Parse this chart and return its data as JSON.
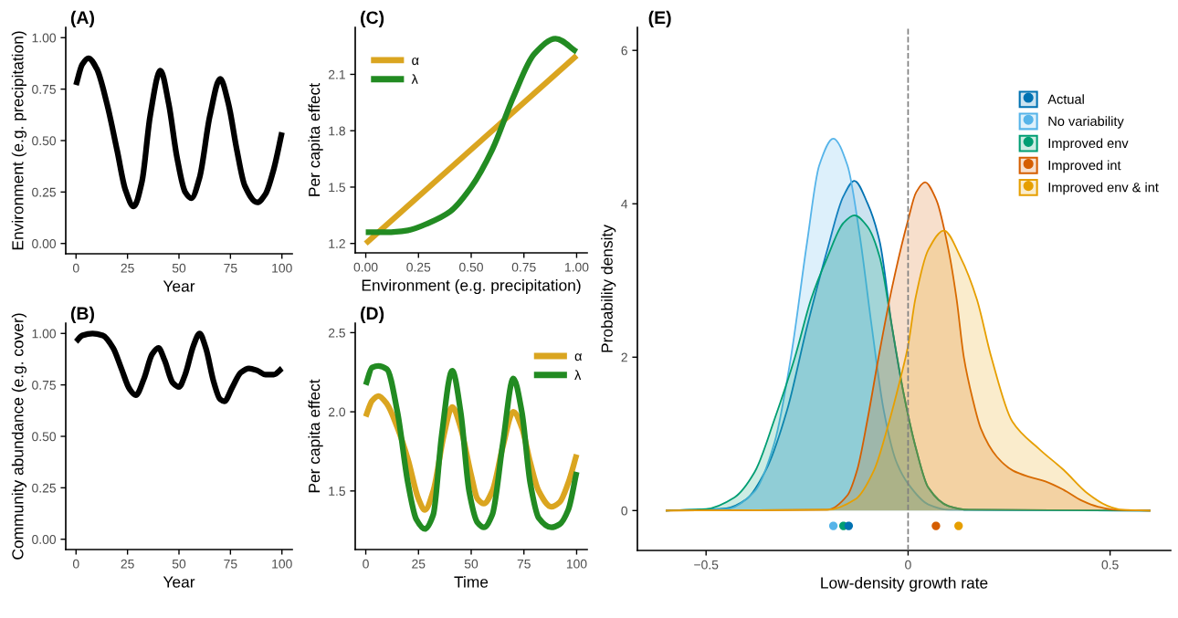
{
  "chart_data": [
    {
      "type": "line",
      "title": "(A)",
      "xlabel": "Year",
      "ylabel": "Environment (e.g. precipitation)",
      "xlim": [
        -5,
        105
      ],
      "ylim": [
        -0.05,
        1.05
      ],
      "xticks": [
        0,
        25,
        50,
        75,
        100
      ],
      "yticks": [
        {
          "value": 0,
          "label": "0.00"
        },
        {
          "value": 0.25,
          "label": "0.25"
        },
        {
          "value": 0.5,
          "label": "0.50"
        },
        {
          "value": 0.75,
          "label": "0.75"
        },
        {
          "value": 1,
          "label": "1.00"
        }
      ],
      "x": [
        0,
        3,
        6,
        10,
        15,
        20,
        24,
        28,
        32,
        36,
        41,
        45,
        49,
        53,
        56,
        60,
        65,
        70,
        74,
        78,
        82,
        88,
        92,
        96,
        100
      ],
      "series": [
        {
          "color": "#000000",
          "values": [
            0.77,
            0.87,
            0.9,
            0.85,
            0.68,
            0.45,
            0.26,
            0.18,
            0.3,
            0.62,
            0.84,
            0.68,
            0.42,
            0.25,
            0.22,
            0.32,
            0.62,
            0.8,
            0.68,
            0.46,
            0.28,
            0.2,
            0.24,
            0.36,
            0.54
          ]
        }
      ]
    },
    {
      "type": "line",
      "title": "(B)",
      "xlabel": "Year",
      "ylabel": "Community abundance (e.g. cover)",
      "xlim": [
        -5,
        105
      ],
      "ylim": [
        -0.05,
        1.05
      ],
      "xticks": [
        0,
        25,
        50,
        75,
        100
      ],
      "yticks": [
        {
          "value": 0,
          "label": "0.00"
        },
        {
          "value": 0.25,
          "label": "0.25"
        },
        {
          "value": 0.5,
          "label": "0.50"
        },
        {
          "value": 0.75,
          "label": "0.75"
        },
        {
          "value": 1,
          "label": "1.00"
        }
      ],
      "x": [
        0,
        3,
        8,
        13,
        18,
        22,
        26,
        29,
        33,
        37,
        40,
        43,
        47,
        50,
        53,
        57,
        60,
        63,
        67,
        70,
        72,
        76,
        80,
        84,
        88,
        92,
        96,
        100
      ],
      "series": [
        {
          "color": "#000000",
          "values": [
            0.96,
            0.99,
            1.0,
            0.99,
            0.93,
            0.83,
            0.73,
            0.7,
            0.78,
            0.9,
            0.93,
            0.87,
            0.76,
            0.74,
            0.8,
            0.94,
            1.0,
            0.93,
            0.76,
            0.68,
            0.67,
            0.74,
            0.81,
            0.83,
            0.82,
            0.8,
            0.8,
            0.83
          ]
        }
      ]
    },
    {
      "type": "line",
      "title": "(C)",
      "xlabel": "Environment (e.g. precipitation)",
      "ylabel": "Per capita effect",
      "xlim": [
        -0.05,
        1.05
      ],
      "ylim": [
        1.15,
        2.35
      ],
      "xticks": [
        {
          "value": 0,
          "label": "0.00"
        },
        {
          "value": 0.25,
          "label": "0.25"
        },
        {
          "value": 0.5,
          "label": "0.50"
        },
        {
          "value": 0.75,
          "label": "0.75"
        },
        {
          "value": 1,
          "label": "1.00"
        }
      ],
      "yticks": [
        1.2,
        1.5,
        1.8,
        2.1
      ],
      "legend": "top left",
      "series": [
        {
          "name": "α",
          "color": "#DAA520",
          "x": [
            0,
            1
          ],
          "values": [
            1.2,
            2.2
          ]
        },
        {
          "name": "λ",
          "color": "#228B22",
          "x": [
            0,
            0.1,
            0.2,
            0.3,
            0.4,
            0.5,
            0.6,
            0.7,
            0.8,
            0.9,
            1.0
          ],
          "values": [
            1.26,
            1.26,
            1.27,
            1.31,
            1.37,
            1.5,
            1.7,
            1.98,
            2.21,
            2.29,
            2.22
          ]
        }
      ]
    },
    {
      "type": "line",
      "title": "(D)",
      "xlabel": "Time",
      "ylabel": "Per capita effect",
      "xlim": [
        -5,
        105
      ],
      "ylim": [
        1.13,
        2.56
      ],
      "xticks": [
        0,
        25,
        50,
        75,
        100
      ],
      "yticks": [
        1.5,
        {
          "value": 2,
          "label": "2.0"
        },
        2.5
      ],
      "legend": "top right",
      "series": [
        {
          "name": "α",
          "color": "#DAA520",
          "x": [
            0,
            3,
            6,
            10,
            15,
            20,
            25,
            28,
            32,
            37,
            41,
            45,
            50,
            53,
            56,
            60,
            65,
            70,
            74,
            78,
            82,
            88,
            92,
            96,
            100
          ],
          "values": [
            1.97,
            2.07,
            2.1,
            2.05,
            1.9,
            1.7,
            1.45,
            1.38,
            1.5,
            1.85,
            2.03,
            1.9,
            1.6,
            1.45,
            1.42,
            1.5,
            1.78,
            2.0,
            1.9,
            1.68,
            1.5,
            1.4,
            1.43,
            1.55,
            1.73
          ]
        },
        {
          "name": "λ",
          "color": "#228B22",
          "x": [
            0,
            3,
            6,
            10,
            15,
            20,
            24,
            28,
            32,
            36,
            41,
            45,
            49,
            53,
            56,
            60,
            65,
            70,
            74,
            78,
            82,
            88,
            92,
            96,
            100
          ],
          "values": [
            2.17,
            2.28,
            2.29,
            2.27,
            2.0,
            1.55,
            1.32,
            1.26,
            1.35,
            1.85,
            2.26,
            2.0,
            1.5,
            1.3,
            1.27,
            1.35,
            1.8,
            2.21,
            2.0,
            1.55,
            1.33,
            1.27,
            1.29,
            1.38,
            1.62
          ]
        }
      ]
    },
    {
      "type": "area",
      "title": "(E)",
      "xlabel": "Low-density growth rate",
      "ylabel": "Probability density",
      "xlim": [
        -0.67,
        0.65
      ],
      "ylim": [
        -0.52,
        6.3
      ],
      "xticks": [
        {
          "value": -0.5,
          "label": "−0.5"
        },
        0,
        0.5
      ],
      "yticks": [
        0,
        2,
        4,
        6
      ],
      "legend": "top right",
      "ref_lines": [
        {
          "axis": "x",
          "value": 0,
          "color": "#7f7f7f",
          "line_style": "dashed"
        }
      ],
      "series": [
        {
          "name": "Actual",
          "color": "#0072B2",
          "x": [
            -0.6,
            -0.45,
            -0.4,
            -0.35,
            -0.3,
            -0.25,
            -0.2,
            -0.16,
            -0.133,
            -0.1,
            -0.07,
            -0.04,
            -0.01,
            0.02,
            0.05,
            0.1,
            0.15,
            0.6
          ],
          "values": [
            0,
            0.03,
            0.15,
            0.55,
            1.3,
            2.4,
            3.4,
            4.1,
            4.3,
            4.0,
            3.5,
            2.4,
            1.5,
            0.8,
            0.3,
            0.06,
            0.01,
            0
          ]
        },
        {
          "name": "No variability",
          "color": "#56B4E9",
          "x": [
            -0.6,
            -0.45,
            -0.38,
            -0.33,
            -0.29,
            -0.25,
            -0.22,
            -0.185,
            -0.15,
            -0.12,
            -0.09,
            -0.06,
            -0.03,
            0,
            0.05,
            0.1,
            0.6
          ],
          "values": [
            0,
            0.02,
            0.25,
            0.9,
            2.0,
            3.5,
            4.5,
            4.85,
            4.5,
            3.6,
            2.4,
            1.3,
            0.65,
            0.35,
            0.08,
            0.01,
            0
          ]
        },
        {
          "name": "Improved env",
          "color": "#009E73",
          "x": [
            -0.6,
            -0.5,
            -0.43,
            -0.38,
            -0.33,
            -0.28,
            -0.24,
            -0.2,
            -0.16,
            -0.133,
            -0.1,
            -0.07,
            -0.04,
            -0.01,
            0.02,
            0.05,
            0.1,
            0.15,
            0.6
          ],
          "values": [
            0,
            0.02,
            0.17,
            0.5,
            1.2,
            2.0,
            2.76,
            3.3,
            3.75,
            3.85,
            3.7,
            3.3,
            2.4,
            1.5,
            0.8,
            0.3,
            0.06,
            0.01,
            0
          ]
        },
        {
          "name": "Improved int",
          "color": "#D55E00",
          "x": [
            -0.6,
            -0.2,
            -0.15,
            -0.126,
            -0.1,
            -0.073,
            -0.04,
            0,
            0.02,
            0.042,
            0.07,
            0.1,
            0.12,
            0.138,
            0.16,
            0.18,
            0.22,
            0.26,
            0.3,
            0.34,
            0.385,
            0.43,
            0.47,
            0.51,
            0.6
          ],
          "values": [
            0,
            0.01,
            0.2,
            0.53,
            1.2,
            2.0,
            2.9,
            3.79,
            4.15,
            4.28,
            4.05,
            3.4,
            2.76,
            2.0,
            1.45,
            1.07,
            0.7,
            0.52,
            0.44,
            0.38,
            0.27,
            0.13,
            0.05,
            0.01,
            0
          ]
        },
        {
          "name": "Improved env & int",
          "color": "#E69F00",
          "x": [
            -0.6,
            -0.2,
            -0.13,
            -0.084,
            -0.05,
            -0.02,
            0,
            0.018,
            0.05,
            0.089,
            0.13,
            0.17,
            0.206,
            0.258,
            0.325,
            0.385,
            0.445,
            0.49,
            0.53,
            0.6
          ],
          "values": [
            0,
            0.01,
            0.15,
            0.53,
            1.1,
            1.7,
            2.15,
            2.76,
            3.4,
            3.65,
            3.3,
            2.76,
            2.0,
            1.16,
            0.8,
            0.53,
            0.22,
            0.07,
            0.01,
            0
          ]
        },
        {
          "type": "scatter",
          "marker": "circle",
          "x": [
            -0.185,
            -0.16,
            -0.147,
            0.069,
            0.125
          ],
          "values": [
            -0.2,
            -0.2,
            -0.2,
            -0.2,
            -0.2
          ],
          "colors": [
            "#56B4E9",
            "#009E73",
            "#0072B2",
            "#D55E00",
            "#E69F00"
          ]
        }
      ]
    }
  ]
}
